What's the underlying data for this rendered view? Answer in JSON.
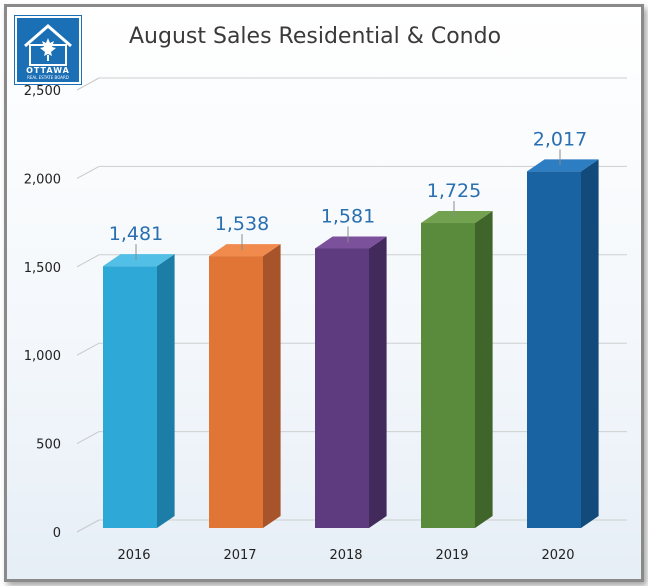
{
  "chart_data": {
    "type": "bar",
    "title": "August Sales Residential & Condo",
    "xlabel": "",
    "ylabel": "",
    "categories": [
      "2016",
      "2017",
      "2018",
      "2019",
      "2020"
    ],
    "values": [
      1481,
      1538,
      1581,
      1725,
      2017
    ],
    "data_labels": [
      "1,481",
      "1,538",
      "1,581",
      "1,725",
      "2,017"
    ],
    "ylim": [
      0,
      2500
    ],
    "yticks": [
      0,
      500,
      1000,
      1500,
      2000,
      2500
    ],
    "ytick_labels": [
      "0",
      "500",
      "1,000",
      "1,500",
      "2,000",
      "2,500"
    ],
    "grid": true,
    "legend": "none",
    "bar_colors": [
      "#2ea8d6",
      "#e07535",
      "#5e3a7e",
      "#5a8a3c",
      "#1a63a3"
    ],
    "bar_side_colors": [
      "#1c7ea6",
      "#a8542a",
      "#432a5c",
      "#3f652a",
      "#124a7b"
    ],
    "bar_top_colors": [
      "#52bfe6",
      "#f08a4d",
      "#7b519c",
      "#72a14f",
      "#2d7dc2"
    ]
  },
  "logo": {
    "icon": "maple-leaf-house-icon",
    "text": "OTTAWA",
    "subtext": "REAL ESTATE BOARD",
    "color": "#1b6fb5"
  }
}
